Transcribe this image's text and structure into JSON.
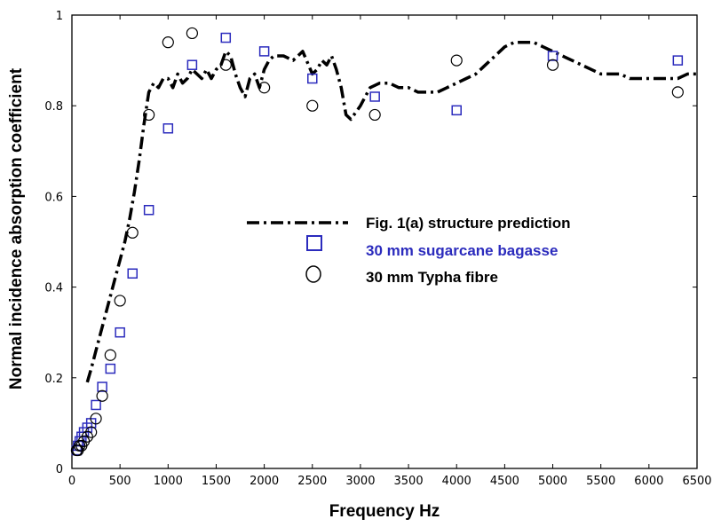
{
  "chart_data": {
    "type": "line",
    "xlabel": "Frequency Hz",
    "ylabel": "Normal incidence absorption coefficient",
    "xlim": [
      0,
      6500
    ],
    "ylim": [
      0,
      1
    ],
    "x_ticks": [
      "0",
      "500",
      "1000",
      "1500",
      "2000",
      "2500",
      "3000",
      "3500",
      "4000",
      "4500",
      "5000",
      "5500",
      "6000",
      "6500"
    ],
    "y_ticks": [
      "0",
      "0.2",
      "0.4",
      "0.6",
      "0.8",
      "1"
    ],
    "grid": false,
    "legend_position": "center-right",
    "series": [
      {
        "name": "Fig. 1(a) structure prediction",
        "style": "dash-dot",
        "color": "#000000",
        "x": [
          160,
          200,
          250,
          300,
          350,
          400,
          450,
          500,
          550,
          600,
          650,
          700,
          750,
          800,
          850,
          900,
          950,
          1000,
          1050,
          1100,
          1150,
          1200,
          1250,
          1300,
          1350,
          1400,
          1450,
          1500,
          1550,
          1600,
          1650,
          1700,
          1750,
          1800,
          1850,
          1900,
          1950,
          2000,
          2050,
          2100,
          2200,
          2300,
          2400,
          2500,
          2550,
          2600,
          2650,
          2700,
          2750,
          2800,
          2850,
          2900,
          3000,
          3100,
          3200,
          3300,
          3400,
          3500,
          3600,
          3700,
          3800,
          3900,
          4000,
          4100,
          4200,
          4300,
          4400,
          4500,
          4600,
          4700,
          4800,
          4900,
          5000,
          5100,
          5200,
          5300,
          5400,
          5500,
          5600,
          5700,
          5800,
          5900,
          6000,
          6100,
          6200,
          6300,
          6400,
          6500
        ],
        "y": [
          0.19,
          0.22,
          0.26,
          0.3,
          0.34,
          0.38,
          0.42,
          0.46,
          0.5,
          0.55,
          0.61,
          0.68,
          0.76,
          0.83,
          0.85,
          0.84,
          0.86,
          0.86,
          0.84,
          0.87,
          0.85,
          0.86,
          0.88,
          0.87,
          0.86,
          0.88,
          0.86,
          0.88,
          0.89,
          0.92,
          0.91,
          0.87,
          0.84,
          0.82,
          0.86,
          0.87,
          0.84,
          0.88,
          0.9,
          0.91,
          0.91,
          0.9,
          0.92,
          0.87,
          0.88,
          0.9,
          0.89,
          0.91,
          0.88,
          0.84,
          0.78,
          0.77,
          0.8,
          0.84,
          0.85,
          0.85,
          0.84,
          0.84,
          0.83,
          0.83,
          0.83,
          0.84,
          0.85,
          0.86,
          0.87,
          0.89,
          0.91,
          0.93,
          0.94,
          0.94,
          0.94,
          0.93,
          0.92,
          0.91,
          0.9,
          0.89,
          0.88,
          0.87,
          0.87,
          0.87,
          0.86,
          0.86,
          0.86,
          0.86,
          0.86,
          0.86,
          0.87,
          0.87
        ]
      },
      {
        "name": "30 mm sugarcane bagasse",
        "style": "square-marker",
        "color": "#2b2bbd",
        "x": [
          50,
          63,
          80,
          100,
          125,
          160,
          200,
          250,
          315,
          400,
          500,
          630,
          800,
          1000,
          1250,
          1600,
          2000,
          2500,
          3150,
          4000,
          5000,
          6300
        ],
        "y": [
          0.04,
          0.05,
          0.06,
          0.07,
          0.08,
          0.09,
          0.1,
          0.14,
          0.18,
          0.22,
          0.3,
          0.43,
          0.57,
          0.75,
          0.89,
          0.95,
          0.92,
          0.86,
          0.82,
          0.79,
          0.91,
          0.9
        ]
      },
      {
        "name": "30 mm Typha fibre",
        "style": "circle-marker",
        "color": "#000000",
        "x": [
          50,
          63,
          80,
          100,
          125,
          160,
          200,
          250,
          315,
          400,
          500,
          630,
          800,
          1000,
          1250,
          1600,
          2000,
          2500,
          3150,
          4000,
          5000,
          6300
        ],
        "y": [
          0.04,
          0.04,
          0.05,
          0.05,
          0.06,
          0.07,
          0.08,
          0.11,
          0.16,
          0.25,
          0.37,
          0.52,
          0.78,
          0.94,
          0.96,
          0.89,
          0.84,
          0.8,
          0.78,
          0.9,
          0.89,
          0.83
        ]
      }
    ]
  }
}
